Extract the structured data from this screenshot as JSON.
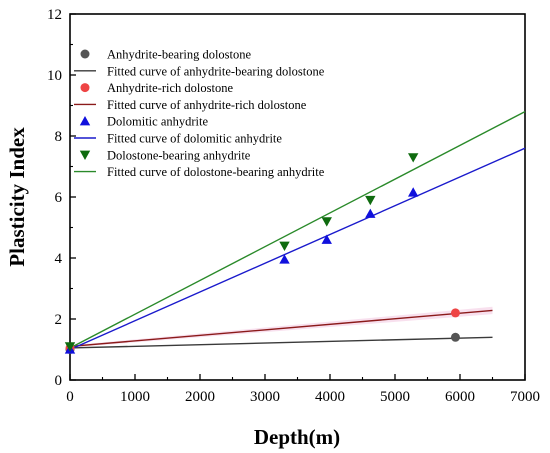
{
  "chart_data": {
    "type": "scatter",
    "xlabel": "Depth(m)",
    "ylabel": "Plasticity Index",
    "xlim": [
      0,
      7000
    ],
    "ylim": [
      0,
      12
    ],
    "x_ticks": [
      "0",
      "1000",
      "2000",
      "3000",
      "4000",
      "5000",
      "6000",
      "7000"
    ],
    "y_ticks": [
      "0",
      "2",
      "4",
      "6",
      "8",
      "10",
      "12"
    ],
    "grid": false,
    "legend_position": "top-left",
    "series": [
      {
        "name": "Anhydrite-bearing dolostone",
        "kind": "scatter",
        "marker": "circle",
        "color": "#555555",
        "points": [
          [
            0,
            1.0
          ],
          [
            5930,
            1.4
          ]
        ]
      },
      {
        "name": "Fitted curve of anhydrite-bearing dolostone",
        "kind": "line",
        "color": "#3a3a3a",
        "points": [
          [
            0,
            1.05
          ],
          [
            6500,
            1.4
          ]
        ]
      },
      {
        "name": "Anhydrite-rich dolostone",
        "kind": "scatter",
        "marker": "circle",
        "color": "#ee4444",
        "points": [
          [
            0,
            1.05
          ],
          [
            5930,
            2.2
          ]
        ]
      },
      {
        "name": "Fitted curve of anhydrite-rich dolostone",
        "kind": "line",
        "color": "#8b1a1a",
        "points": [
          [
            0,
            1.1
          ],
          [
            6500,
            2.28
          ]
        ]
      },
      {
        "name": "Dolomitic anhydrite",
        "kind": "scatter",
        "marker": "triangle-up",
        "color": "#1010dd",
        "points": [
          [
            0,
            1.0
          ],
          [
            3300,
            3.95
          ],
          [
            3950,
            4.6
          ],
          [
            4620,
            5.45
          ],
          [
            5280,
            6.15
          ]
        ]
      },
      {
        "name": "Fitted curve of dolomitic anhydrite",
        "kind": "line",
        "color": "#1a1acc",
        "points": [
          [
            0,
            1.0
          ],
          [
            7000,
            7.6
          ]
        ]
      },
      {
        "name": "Dolostone-bearing anhydrite",
        "kind": "scatter",
        "marker": "triangle-down",
        "color": "#0f6b0f",
        "points": [
          [
            0,
            1.1
          ],
          [
            3300,
            4.4
          ],
          [
            3950,
            5.2
          ],
          [
            4620,
            5.9
          ],
          [
            5280,
            7.3
          ]
        ]
      },
      {
        "name": "Fitted curve of dolostone-bearing anhydrite",
        "kind": "line",
        "color": "#2a8a2a",
        "points": [
          [
            0,
            1.05
          ],
          [
            7000,
            8.8
          ]
        ]
      }
    ]
  }
}
